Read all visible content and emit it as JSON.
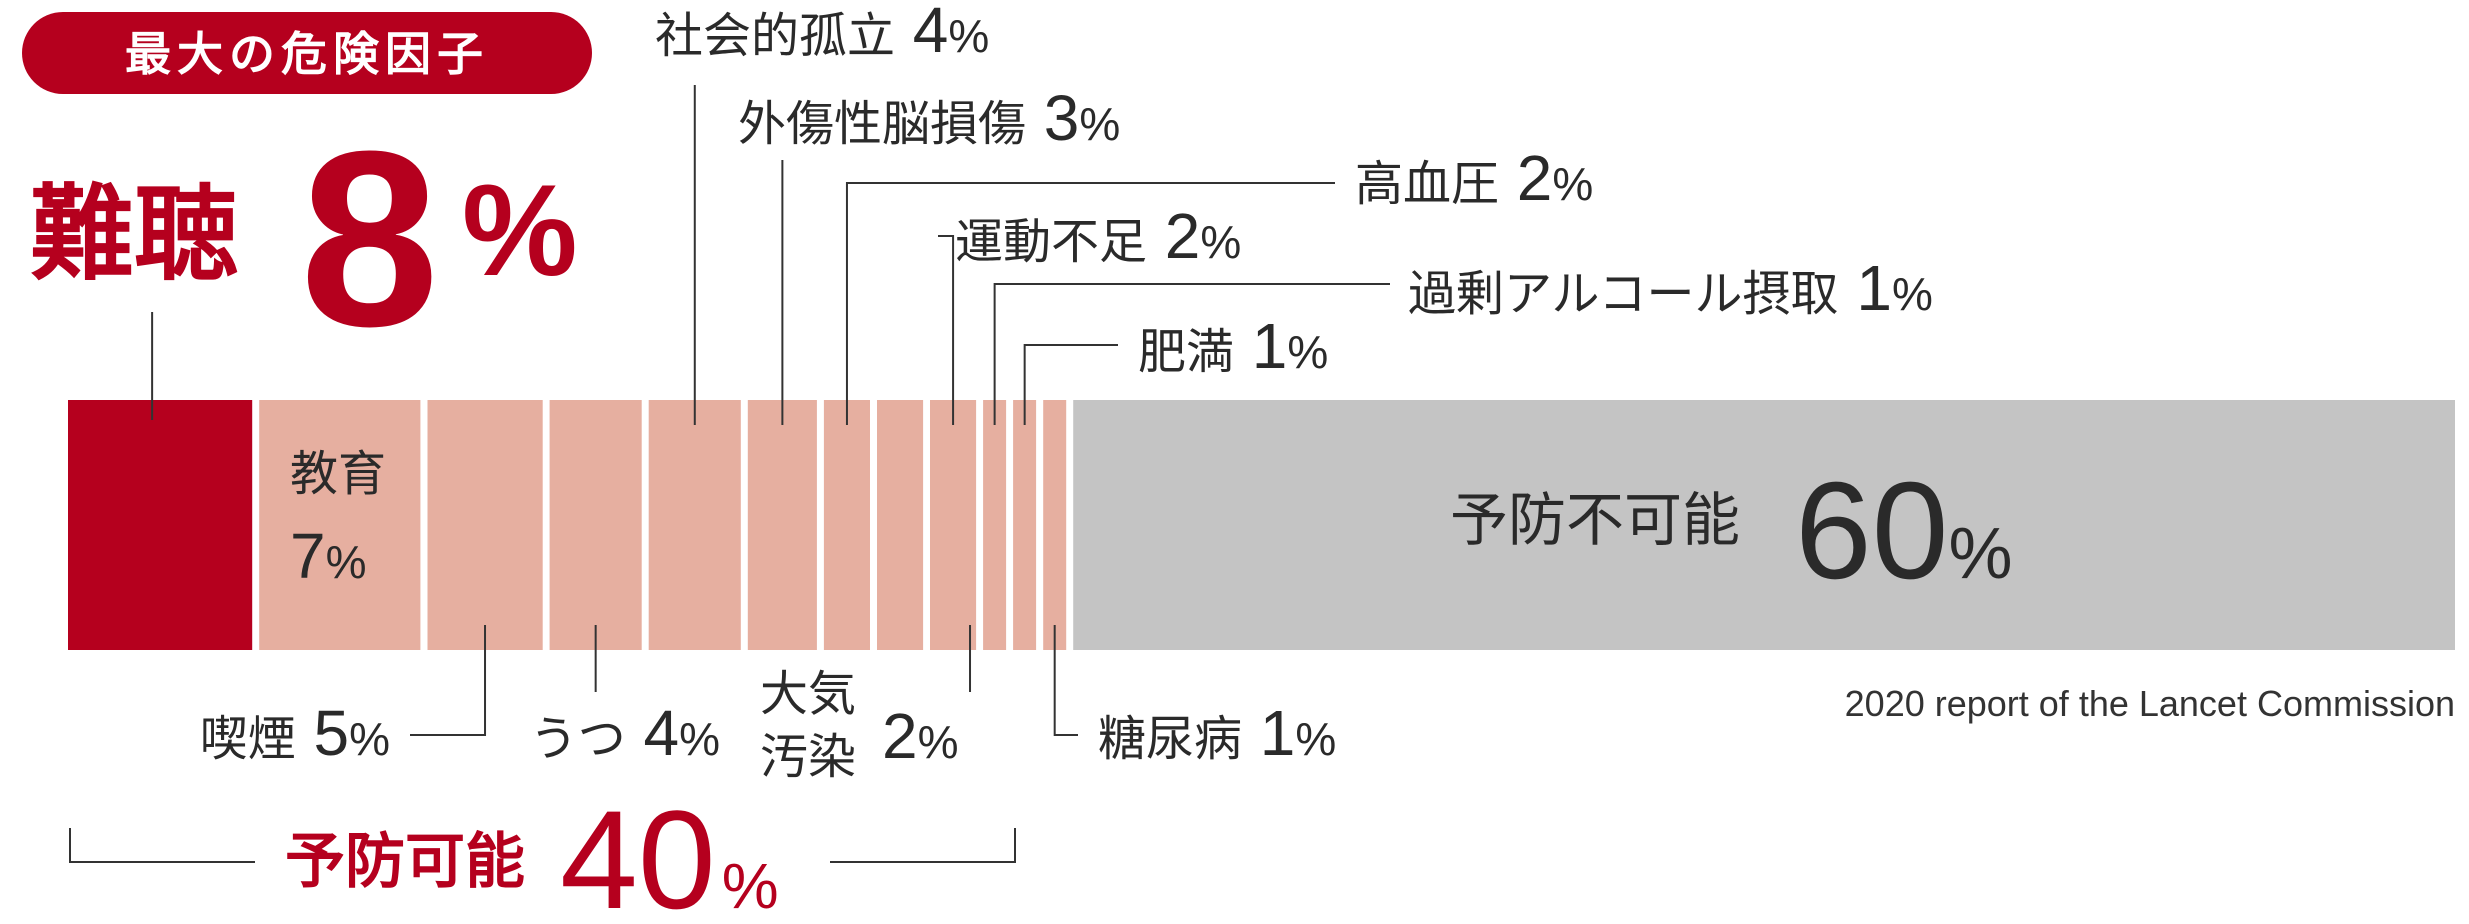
{
  "chart_data": {
    "type": "bar",
    "orientation": "horizontal-stacked",
    "title": "",
    "xlabel": "",
    "ylabel": "",
    "unit": "%",
    "highlight": {
      "badge": "最大の危険因子",
      "label": "難聴",
      "value": "8",
      "unit": "%"
    },
    "segments": [
      {
        "label": "難聴",
        "display_value": "8",
        "value": 8,
        "group": "preventable",
        "highlight": true
      },
      {
        "label": "教育",
        "display_value": "7",
        "value": 7,
        "group": "preventable"
      },
      {
        "label": "喫煙",
        "display_value": "5",
        "value": 5,
        "group": "preventable"
      },
      {
        "label": "うつ",
        "display_value": "4",
        "value": 4,
        "group": "preventable"
      },
      {
        "label": "社会的孤立",
        "display_value": "4",
        "value": 4,
        "group": "preventable"
      },
      {
        "label": "外傷性脳損傷",
        "display_value": "3",
        "value": 3,
        "group": "preventable"
      },
      {
        "label": "高血圧",
        "display_value": "2",
        "value": 2,
        "group": "preventable"
      },
      {
        "label": "大気汚染",
        "label_lines": [
          "大気",
          "汚染"
        ],
        "display_value": "2",
        "value": 2,
        "group": "preventable"
      },
      {
        "label": "運動不足",
        "display_value": "2",
        "value": 2,
        "group": "preventable"
      },
      {
        "label": "過剰アルコール摂取",
        "display_value": "1",
        "value": 1,
        "group": "preventable"
      },
      {
        "label": "糖尿病",
        "display_value": "1",
        "value": 1,
        "group": "preventable"
      },
      {
        "label": "肥満",
        "display_value": "1",
        "value": 1,
        "group": "preventable"
      },
      {
        "label": "予防不可能",
        "display_value": "60",
        "value": 60,
        "group": "non-preventable"
      }
    ],
    "groups": {
      "preventable": {
        "label": "予防可能",
        "value": "40",
        "unit": "%"
      },
      "non_preventable": {
        "label": "予防不可能",
        "value": "60",
        "unit": "%"
      }
    },
    "source": "2020 report of the Lancet Commission",
    "colors": {
      "highlight": "#b5001e",
      "preventable": "#e6afa0",
      "non_preventable": "#c4c4c4",
      "text": "#2a2a2a",
      "lines": "#333333",
      "background": "#ffffff"
    }
  }
}
